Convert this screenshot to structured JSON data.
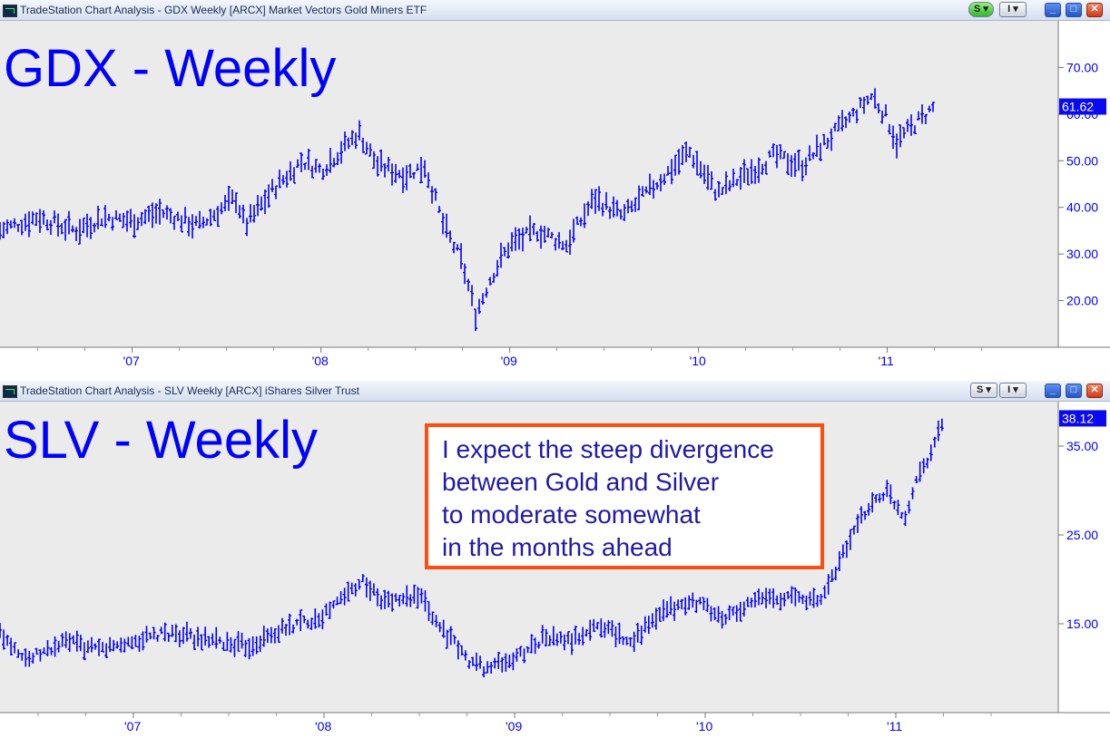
{
  "windows": [
    {
      "title": "TradeStation Chart Analysis - GDX Weekly [ARCX] Market Vectors Gold Miners ETF",
      "status_button": "S",
      "info_button": "I",
      "minimize": "_",
      "maximize": "□",
      "close": "✕"
    },
    {
      "title": "TradeStation Chart Analysis - SLV Weekly [ARCX] iShares Silver Trust",
      "status_button": "S",
      "info_button": "I",
      "minimize": "_",
      "maximize": "□",
      "close": "✕"
    }
  ],
  "colors": {
    "series": "#0000ff",
    "plot_bg": "#ebebeb",
    "callout_border": "#ff4d0d",
    "callout_text": "#1f1aa8",
    "status_green": "#2fb62f"
  },
  "callout": {
    "lines": [
      "I expect the steep divergence",
      "between Gold and Silver",
      "to moderate somewhat",
      "in the months ahead"
    ]
  },
  "chart_data": [
    {
      "type": "line",
      "style": "weekly OHLC bars",
      "title": "GDX - Weekly",
      "x_labels": [
        "'07",
        "'08",
        "'09",
        "'10",
        "'11"
      ],
      "y_ticks": [
        20,
        30,
        40,
        50,
        60,
        70
      ],
      "y_tick_labels": [
        "20.00",
        "30.00",
        "40.00",
        "50.00",
        "60.00",
        "70.00"
      ],
      "ylim": [
        10,
        80
      ],
      "last_price": "61.62",
      "last_value": 61.62,
      "series": [
        {
          "x": [
            2006.3,
            2006.5,
            2006.7,
            2006.85,
            2007.0,
            2007.15,
            2007.35,
            2007.55,
            2007.6,
            2007.75,
            2007.9,
            2008.0,
            2008.15,
            2008.2,
            2008.3,
            2008.45,
            2008.55,
            2008.65,
            2008.75,
            2008.82,
            2008.9,
            2009.0,
            2009.15,
            2009.3,
            2009.45,
            2009.6,
            2009.75,
            2009.85,
            2009.95,
            2010.1,
            2010.25,
            2010.4,
            2010.55,
            2010.7,
            2010.85,
            2010.92,
            2011.0,
            2011.05,
            2011.15,
            2011.25
          ],
          "values": [
            35,
            38,
            35,
            38,
            37,
            39,
            36,
            42,
            36,
            44,
            50,
            48,
            54,
            56,
            49,
            47,
            49,
            36,
            28,
            17,
            25,
            32,
            35,
            32,
            42,
            38,
            44,
            48,
            52,
            43,
            47,
            51,
            49,
            55,
            61,
            64,
            59,
            54,
            58,
            61.62
          ]
        }
      ]
    },
    {
      "type": "line",
      "style": "weekly OHLC bars",
      "title": "SLV - Weekly",
      "x_labels": [
        "'07",
        "'08",
        "'09",
        "'10",
        "'11"
      ],
      "y_ticks": [
        15,
        25,
        35
      ],
      "y_tick_labels": [
        "15.00",
        "25.00",
        "35.00"
      ],
      "ylim": [
        5,
        40
      ],
      "last_price": "38.12",
      "last_value": 38.12,
      "series": [
        {
          "x": [
            2006.3,
            2006.45,
            2006.65,
            2006.8,
            2007.0,
            2007.2,
            2007.4,
            2007.6,
            2007.8,
            2008.0,
            2008.2,
            2008.3,
            2008.5,
            2008.6,
            2008.75,
            2008.85,
            2009.0,
            2009.15,
            2009.3,
            2009.45,
            2009.6,
            2009.8,
            2009.95,
            2010.1,
            2010.3,
            2010.45,
            2010.6,
            2010.75,
            2010.85,
            2010.95,
            2011.05,
            2011.1,
            2011.2,
            2011.25
          ],
          "values": [
            14,
            11,
            13,
            12,
            13,
            14,
            13,
            12.5,
            14.5,
            16,
            20,
            17.5,
            18,
            15,
            11,
            10,
            11,
            13.5,
            13,
            15,
            13,
            16.5,
            17.5,
            15.5,
            18,
            18,
            17.5,
            24,
            28,
            30,
            27,
            31,
            35,
            38.12
          ]
        }
      ]
    }
  ]
}
